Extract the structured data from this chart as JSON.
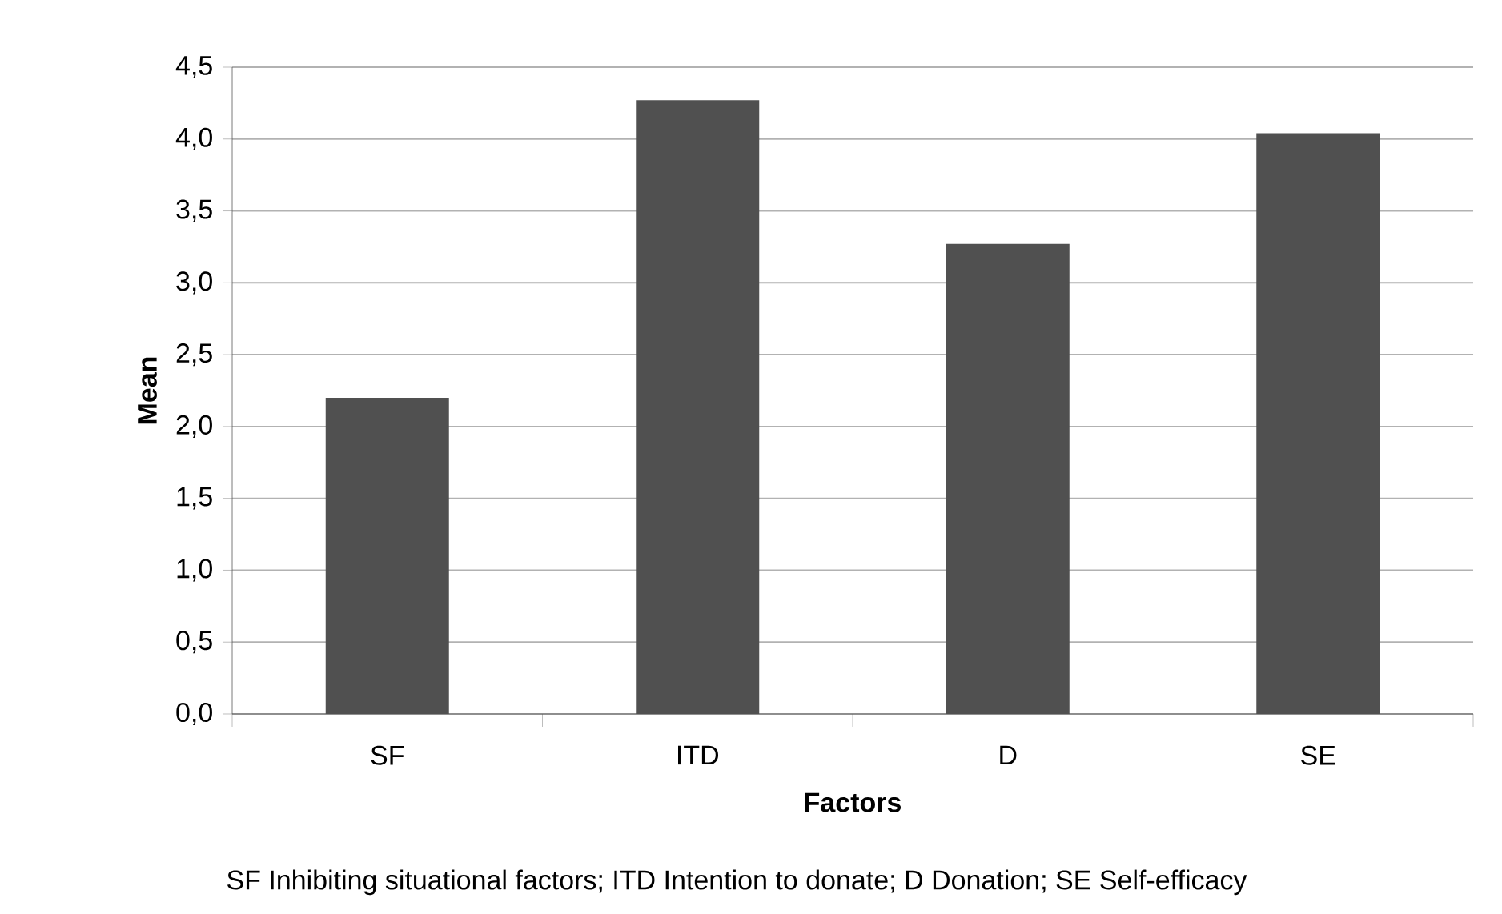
{
  "chart_data": {
    "type": "bar",
    "xlabel": "Factors",
    "ylabel": "Mean",
    "categories": [
      "SF",
      "ITD",
      "D",
      "SE"
    ],
    "values": [
      2.2,
      4.27,
      3.27,
      4.04
    ],
    "color": "#505050",
    "ylim": [
      0,
      4.5
    ],
    "yticks": [
      {
        "value": 0,
        "label": "0,0"
      },
      {
        "value": 0.5,
        "label": "0,5"
      },
      {
        "value": 1,
        "label": "1,0"
      },
      {
        "value": 1.5,
        "label": "1,5"
      },
      {
        "value": 2,
        "label": "2,0"
      },
      {
        "value": 2.5,
        "label": "2,5"
      },
      {
        "value": 3,
        "label": "3,0"
      },
      {
        "value": 3.5,
        "label": "3,5"
      },
      {
        "value": 4,
        "label": "4,0"
      },
      {
        "value": 4.5,
        "label": "4,5"
      }
    ],
    "grid": "y",
    "annotations": [
      "SF Inhibiting situational factors; ITD Intention to donate; D Donation; SE Self-efficacy"
    ]
  }
}
